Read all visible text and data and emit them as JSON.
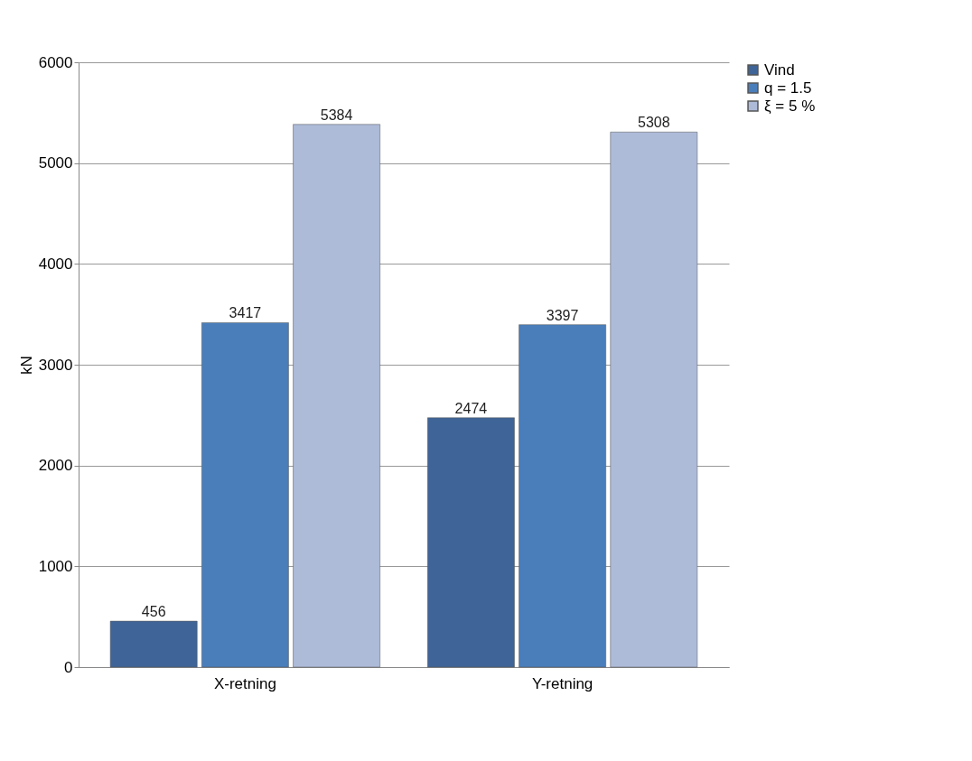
{
  "chart_data": {
    "type": "bar",
    "ylabel": "kN",
    "categories": [
      "X-retning",
      "Y-retning"
    ],
    "series": [
      {
        "name": "Vind",
        "color": "#3f6497",
        "values": [
          456,
          2474
        ]
      },
      {
        "name": "q = 1.5",
        "color": "#4a7ebb",
        "values": [
          3417,
          3397
        ]
      },
      {
        "name": "ξ = 5 %",
        "color": "#adbad8",
        "values": [
          5384,
          5308
        ]
      }
    ],
    "ylim": [
      0,
      6000
    ],
    "yticks": [
      0,
      1000,
      2000,
      3000,
      4000,
      5000,
      6000
    ],
    "grid": "y",
    "legend": "right",
    "data_labels": true
  }
}
